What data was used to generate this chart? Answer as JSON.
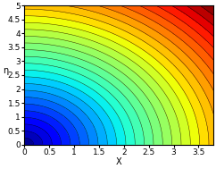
{
  "x_min": 0,
  "x_max": 3.8,
  "y_min": 0,
  "y_max": 5,
  "x_label": "X",
  "y_label": "η",
  "x_ticks": [
    0,
    0.5,
    1,
    1.5,
    2,
    2.5,
    3,
    3.5
  ],
  "y_ticks": [
    0,
    0.5,
    1,
    1.5,
    2,
    2.5,
    3,
    3.5,
    4,
    4.5,
    5
  ],
  "n_contour_levels": 30,
  "colormap": "jet",
  "figsize": [
    2.42,
    1.89
  ],
  "dpi": 100,
  "x_radius_scale": 1.0,
  "y_radius_scale": 0.76,
  "power": 1.0
}
